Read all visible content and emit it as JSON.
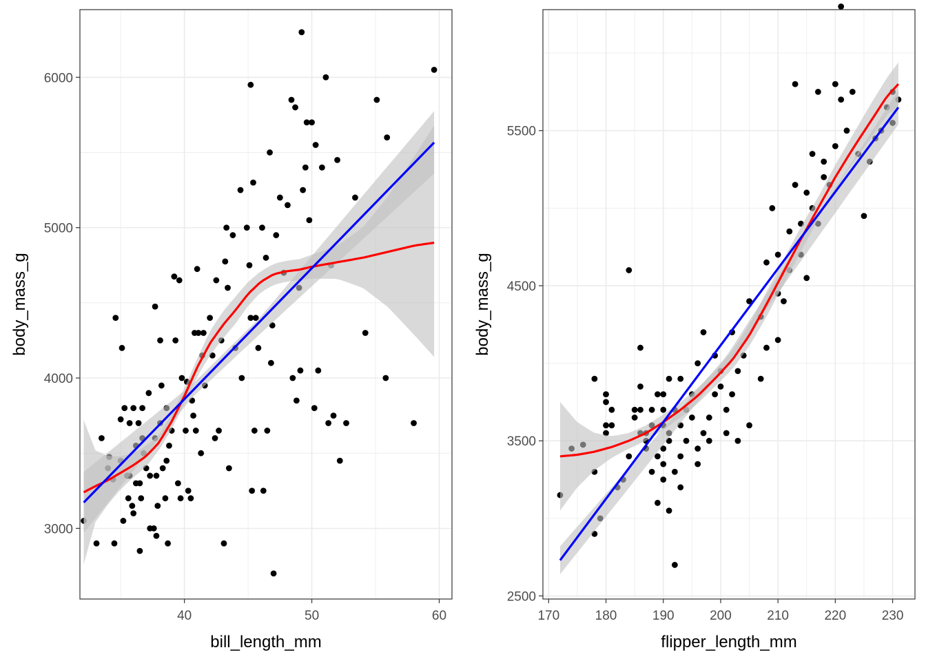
{
  "colors": {
    "points": "#000000",
    "loess": "#ff0000",
    "lm": "#0000ff",
    "ribbon": "#bfbfbf",
    "grid": "#ebebeb",
    "border": "#333333"
  },
  "chart_data": [
    {
      "type": "scatter",
      "xlabel": "bill_length_mm",
      "ylabel": "body_mass_g",
      "xlim": [
        31.8,
        61.0
      ],
      "ylim": [
        2530,
        6450
      ],
      "xticks": [
        40,
        50,
        60
      ],
      "yticks": [
        3000,
        4000,
        5000,
        6000
      ],
      "grid": true,
      "points": [
        [
          32.1,
          3050
        ],
        [
          33.1,
          2900
        ],
        [
          33.5,
          3600
        ],
        [
          34.0,
          3400
        ],
        [
          34.1,
          3475
        ],
        [
          34.4,
          3325
        ],
        [
          34.5,
          2900
        ],
        [
          34.6,
          4400
        ],
        [
          35.0,
          3450
        ],
        [
          35.0,
          3725
        ],
        [
          35.1,
          4200
        ],
        [
          35.2,
          3050
        ],
        [
          35.3,
          3800
        ],
        [
          35.5,
          3350
        ],
        [
          35.6,
          3200
        ],
        [
          35.7,
          3350
        ],
        [
          35.7,
          3700
        ],
        [
          35.9,
          3150
        ],
        [
          36.0,
          3800
        ],
        [
          36.0,
          3100
        ],
        [
          36.2,
          3550
        ],
        [
          36.2,
          3300
        ],
        [
          36.4,
          3700
        ],
        [
          36.5,
          2850
        ],
        [
          36.5,
          3300
        ],
        [
          36.6,
          3200
        ],
        [
          36.7,
          3600
        ],
        [
          36.7,
          3800
        ],
        [
          36.8,
          3500
        ],
        [
          37.0,
          3400
        ],
        [
          37.2,
          3900
        ],
        [
          37.3,
          3000
        ],
        [
          37.3,
          3350
        ],
        [
          37.6,
          3000
        ],
        [
          37.7,
          3600
        ],
        [
          37.7,
          4475
        ],
        [
          37.8,
          3350
        ],
        [
          37.8,
          2950
        ],
        [
          37.9,
          3150
        ],
        [
          38.1,
          3700
        ],
        [
          38.1,
          4250
        ],
        [
          38.2,
          3950
        ],
        [
          38.3,
          3400
        ],
        [
          38.5,
          3200
        ],
        [
          38.6,
          3800
        ],
        [
          38.6,
          3450
        ],
        [
          38.7,
          2900
        ],
        [
          38.8,
          3550
        ],
        [
          39.0,
          3650
        ],
        [
          39.2,
          4675
        ],
        [
          39.3,
          4250
        ],
        [
          39.5,
          3300
        ],
        [
          39.6,
          4650
        ],
        [
          39.7,
          3200
        ],
        [
          39.8,
          4000
        ],
        [
          40.1,
          3650
        ],
        [
          40.2,
          3975
        ],
        [
          40.3,
          3250
        ],
        [
          40.5,
          3200
        ],
        [
          40.6,
          3850
        ],
        [
          40.7,
          3750
        ],
        [
          40.8,
          4300
        ],
        [
          40.9,
          3650
        ],
        [
          41.0,
          4725
        ],
        [
          41.1,
          4300
        ],
        [
          41.3,
          3500
        ],
        [
          41.4,
          4150
        ],
        [
          41.5,
          4300
        ],
        [
          41.6,
          3950
        ],
        [
          42.0,
          4400
        ],
        [
          42.2,
          4150
        ],
        [
          42.4,
          3600
        ],
        [
          42.5,
          4650
        ],
        [
          42.7,
          3650
        ],
        [
          42.9,
          4250
        ],
        [
          43.1,
          2900
        ],
        [
          43.2,
          4775
        ],
        [
          43.3,
          5000
        ],
        [
          43.4,
          4600
        ],
        [
          43.5,
          3400
        ],
        [
          43.8,
          4950
        ],
        [
          44.0,
          4200
        ],
        [
          44.4,
          5250
        ],
        [
          44.5,
          4000
        ],
        [
          44.9,
          5000
        ],
        [
          45.1,
          4750
        ],
        [
          45.2,
          5950
        ],
        [
          45.2,
          4400
        ],
        [
          45.3,
          3250
        ],
        [
          45.4,
          5300
        ],
        [
          45.5,
          3650
        ],
        [
          45.6,
          4400
        ],
        [
          45.8,
          4200
        ],
        [
          46.1,
          5000
        ],
        [
          46.2,
          3250
        ],
        [
          46.4,
          4800
        ],
        [
          46.5,
          3650
        ],
        [
          46.7,
          5500
        ],
        [
          46.8,
          4100
        ],
        [
          46.9,
          4350
        ],
        [
          47.0,
          2700
        ],
        [
          47.2,
          4950
        ],
        [
          47.5,
          5200
        ],
        [
          47.8,
          4700
        ],
        [
          48.1,
          5150
        ],
        [
          48.4,
          5850
        ],
        [
          48.5,
          4000
        ],
        [
          48.7,
          5800
        ],
        [
          48.8,
          3850
        ],
        [
          49.0,
          4600
        ],
        [
          49.1,
          4050
        ],
        [
          49.2,
          6300
        ],
        [
          49.3,
          5250
        ],
        [
          49.5,
          5400
        ],
        [
          49.6,
          5700
        ],
        [
          49.8,
          5050
        ],
        [
          50.0,
          5700
        ],
        [
          50.2,
          3800
        ],
        [
          50.3,
          5550
        ],
        [
          50.5,
          4050
        ],
        [
          50.8,
          5400
        ],
        [
          51.1,
          6000
        ],
        [
          51.3,
          3700
        ],
        [
          51.5,
          4750
        ],
        [
          51.7,
          3750
        ],
        [
          52.0,
          5450
        ],
        [
          52.2,
          3450
        ],
        [
          52.7,
          3700
        ],
        [
          53.4,
          5200
        ],
        [
          54.2,
          4300
        ],
        [
          55.1,
          5850
        ],
        [
          55.8,
          4000
        ],
        [
          55.9,
          5600
        ],
        [
          58.0,
          3700
        ],
        [
          59.6,
          6050
        ]
      ],
      "lm": {
        "x": [
          32.1,
          59.6
        ],
        "y": [
          3172,
          5566
        ]
      },
      "lm_ribbon": {
        "x": [
          32.1,
          40.6,
          45.9,
          59.6
        ],
        "lower": [
          2970,
          3870,
          4290,
          5360
        ],
        "upper": [
          3375,
          3957,
          4400,
          5775
        ]
      },
      "loess": {
        "x": [
          32.1,
          33.0,
          34.0,
          35.0,
          36.0,
          37.0,
          38.0,
          39.0,
          40.0,
          41.0,
          42.0,
          43.0,
          44.0,
          45.0,
          46.0,
          47.0,
          48.0,
          49.0,
          50.0,
          52.0,
          54.0,
          56.0,
          58.0,
          59.6
        ],
        "y": [
          3240,
          3280,
          3320,
          3370,
          3420,
          3480,
          3570,
          3710,
          3880,
          4070,
          4230,
          4350,
          4450,
          4560,
          4640,
          4690,
          4710,
          4720,
          4740,
          4770,
          4800,
          4840,
          4880,
          4900
        ],
        "lower": [
          2760,
          3040,
          3160,
          3260,
          3340,
          3410,
          3520,
          3660,
          3830,
          4010,
          4150,
          4260,
          4360,
          4480,
          4570,
          4620,
          4640,
          4650,
          4660,
          4660,
          4600,
          4470,
          4290,
          4140
        ],
        "upper": [
          3720,
          3520,
          3480,
          3480,
          3500,
          3550,
          3620,
          3760,
          3930,
          4130,
          4310,
          4440,
          4540,
          4640,
          4710,
          4760,
          4780,
          4790,
          4820,
          4880,
          5000,
          5210,
          5470,
          5680
        ]
      }
    },
    {
      "type": "scatter",
      "xlabel": "flipper_length_mm",
      "ylabel": "body_mass_g",
      "xlim": [
        169,
        233.9
      ],
      "ylim": [
        2480,
        6280
      ],
      "xticks": [
        170,
        180,
        190,
        200,
        210,
        220,
        230
      ],
      "yticks": [
        2500,
        3500,
        4500,
        5500
      ],
      "grid": true,
      "points": [
        [
          172,
          3150
        ],
        [
          174,
          3450
        ],
        [
          176,
          3475
        ],
        [
          178,
          3300
        ],
        [
          178,
          2900
        ],
        [
          178,
          3900
        ],
        [
          179,
          3000
        ],
        [
          180,
          3750
        ],
        [
          180,
          3550
        ],
        [
          180,
          3600
        ],
        [
          180,
          3800
        ],
        [
          181,
          3700
        ],
        [
          181,
          3600
        ],
        [
          182,
          3200
        ],
        [
          183,
          3250
        ],
        [
          184,
          4600
        ],
        [
          184,
          3400
        ],
        [
          185,
          3650
        ],
        [
          185,
          3700
        ],
        [
          186,
          3700
        ],
        [
          186,
          3850
        ],
        [
          186,
          3550
        ],
        [
          186,
          4100
        ],
        [
          187,
          3450
        ],
        [
          187,
          3500
        ],
        [
          187,
          3550
        ],
        [
          188,
          3300
        ],
        [
          188,
          3600
        ],
        [
          188,
          3700
        ],
        [
          189,
          3400
        ],
        [
          189,
          3800
        ],
        [
          189,
          3100
        ],
        [
          190,
          3700
        ],
        [
          190,
          3450
        ],
        [
          190,
          3250
        ],
        [
          190,
          3350
        ],
        [
          190,
          3600
        ],
        [
          190,
          3800
        ],
        [
          191,
          3550
        ],
        [
          191,
          3900
        ],
        [
          191,
          3050
        ],
        [
          191,
          3500
        ],
        [
          192,
          2700
        ],
        [
          192,
          3700
        ],
        [
          192,
          3300
        ],
        [
          193,
          3400
        ],
        [
          193,
          3200
        ],
        [
          193,
          3600
        ],
        [
          193,
          3900
        ],
        [
          194,
          3700
        ],
        [
          194,
          3500
        ],
        [
          195,
          3800
        ],
        [
          195,
          3650
        ],
        [
          196,
          3350
        ],
        [
          196,
          4000
        ],
        [
          196,
          3450
        ],
        [
          197,
          3550
        ],
        [
          197,
          4200
        ],
        [
          198,
          3500
        ],
        [
          198,
          3650
        ],
        [
          199,
          3800
        ],
        [
          199,
          4050
        ],
        [
          200,
          3950
        ],
        [
          200,
          3850
        ],
        [
          201,
          3550
        ],
        [
          201,
          3700
        ],
        [
          202,
          3800
        ],
        [
          202,
          4200
        ],
        [
          203,
          3950
        ],
        [
          203,
          3500
        ],
        [
          204,
          4050
        ],
        [
          205,
          4400
        ],
        [
          205,
          3600
        ],
        [
          207,
          4300
        ],
        [
          207,
          3900
        ],
        [
          208,
          4650
        ],
        [
          208,
          4100
        ],
        [
          209,
          5000
        ],
        [
          210,
          4450
        ],
        [
          210,
          4700
        ],
        [
          210,
          4150
        ],
        [
          211,
          4400
        ],
        [
          212,
          4850
        ],
        [
          212,
          4600
        ],
        [
          213,
          5150
        ],
        [
          213,
          5800
        ],
        [
          214,
          4700
        ],
        [
          214,
          4900
        ],
        [
          215,
          5100
        ],
        [
          215,
          4550
        ],
        [
          216,
          5350
        ],
        [
          216,
          5000
        ],
        [
          217,
          4900
        ],
        [
          217,
          5750
        ],
        [
          218,
          5200
        ],
        [
          218,
          5300
        ],
        [
          219,
          5150
        ],
        [
          220,
          5800
        ],
        [
          220,
          5400
        ],
        [
          221,
          5700
        ],
        [
          221,
          6300
        ],
        [
          222,
          5500
        ],
        [
          223,
          5750
        ],
        [
          224,
          5350
        ],
        [
          225,
          4950
        ],
        [
          226,
          5300
        ],
        [
          227,
          5450
        ],
        [
          228,
          5500
        ],
        [
          229,
          5650
        ],
        [
          230,
          5550
        ],
        [
          230,
          5750
        ],
        [
          231,
          5700
        ]
      ],
      "lm": {
        "x": [
          172,
          231
        ],
        "y": [
          2730,
          5650
        ]
      },
      "lm_ribbon": {
        "x": [
          172,
          201,
          231
        ],
        "lower": [
          2640,
          3985,
          5540
        ],
        "upper": [
          2820,
          4045,
          5760
        ]
      },
      "loess": {
        "x": [
          172,
          175,
          178,
          181,
          184,
          187,
          190,
          193,
          196,
          199,
          202,
          205,
          208,
          211,
          214,
          217,
          220,
          223,
          226,
          229,
          231
        ],
        "y": [
          3400,
          3410,
          3430,
          3460,
          3500,
          3550,
          3620,
          3700,
          3790,
          3900,
          4020,
          4180,
          4380,
          4590,
          4800,
          5000,
          5200,
          5380,
          5550,
          5720,
          5800
        ],
        "lower": [
          3050,
          3200,
          3310,
          3390,
          3450,
          3500,
          3570,
          3650,
          3740,
          3850,
          3960,
          4110,
          4300,
          4510,
          4720,
          4930,
          5120,
          5290,
          5440,
          5600,
          5660
        ],
        "upper": [
          3750,
          3620,
          3550,
          3530,
          3550,
          3600,
          3670,
          3750,
          3840,
          3950,
          4080,
          4250,
          4460,
          4670,
          4880,
          5070,
          5280,
          5470,
          5660,
          5840,
          5940
        ]
      }
    }
  ]
}
